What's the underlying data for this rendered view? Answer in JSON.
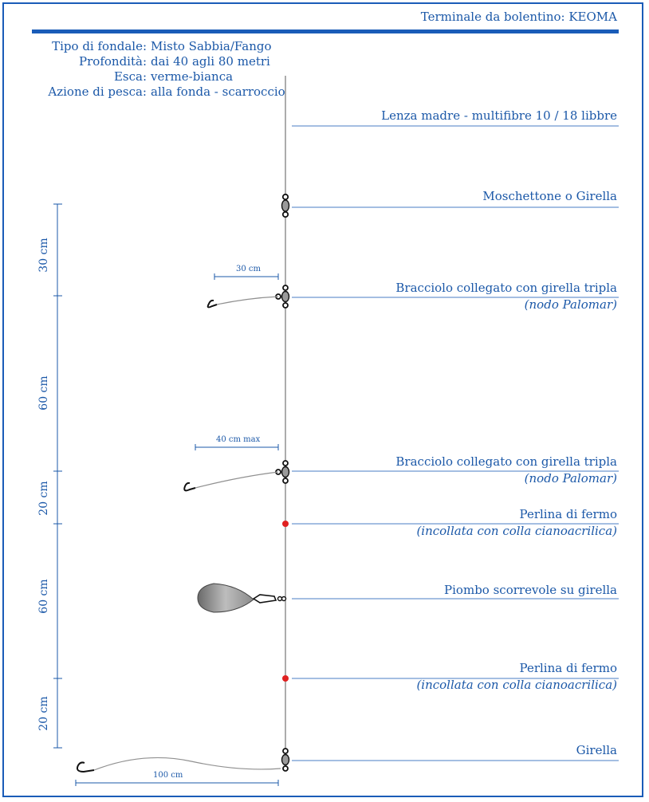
{
  "header": {
    "title": "Terminale da bolentino: KEOMA"
  },
  "info": [
    {
      "label": "Tipo di fondale:",
      "value": "Misto Sabbia/Fango"
    },
    {
      "label": "Profondità:",
      "value": "dai 40 agli 80 metri"
    },
    {
      "label": "Esca:",
      "value": "verme-bianca"
    },
    {
      "label": "Azione di pesca:",
      "value": "alla fonda - scarroccio"
    }
  ],
  "components": [
    {
      "name": "Lenza madre - multifibre 10 / 18 libbre",
      "note": ""
    },
    {
      "name": "Moschettone o Girella",
      "note": ""
    },
    {
      "name": "Bracciolo collegato con girella tripla",
      "note": "(nodo Palomar)"
    },
    {
      "name": "Bracciolo collegato con girella tripla",
      "note": "(nodo Palomar)"
    },
    {
      "name": "Perlina di fermo",
      "note": "(incollata con colla cianoacrilica)"
    },
    {
      "name": "Piombo scorrevole su girella",
      "note": ""
    },
    {
      "name": "Perlina di fermo",
      "note": "(incollata con colla cianoacrilica)"
    },
    {
      "name": "Girella",
      "note": ""
    }
  ],
  "vertical_dimensions": [
    "30 cm",
    "60 cm",
    "20 cm",
    "60 cm",
    "20 cm"
  ],
  "arm_dimensions": [
    "30 cm",
    "40 cm max",
    "100 cm"
  ],
  "colors": {
    "accent": "#1b58a8",
    "bead": "#e02020"
  }
}
